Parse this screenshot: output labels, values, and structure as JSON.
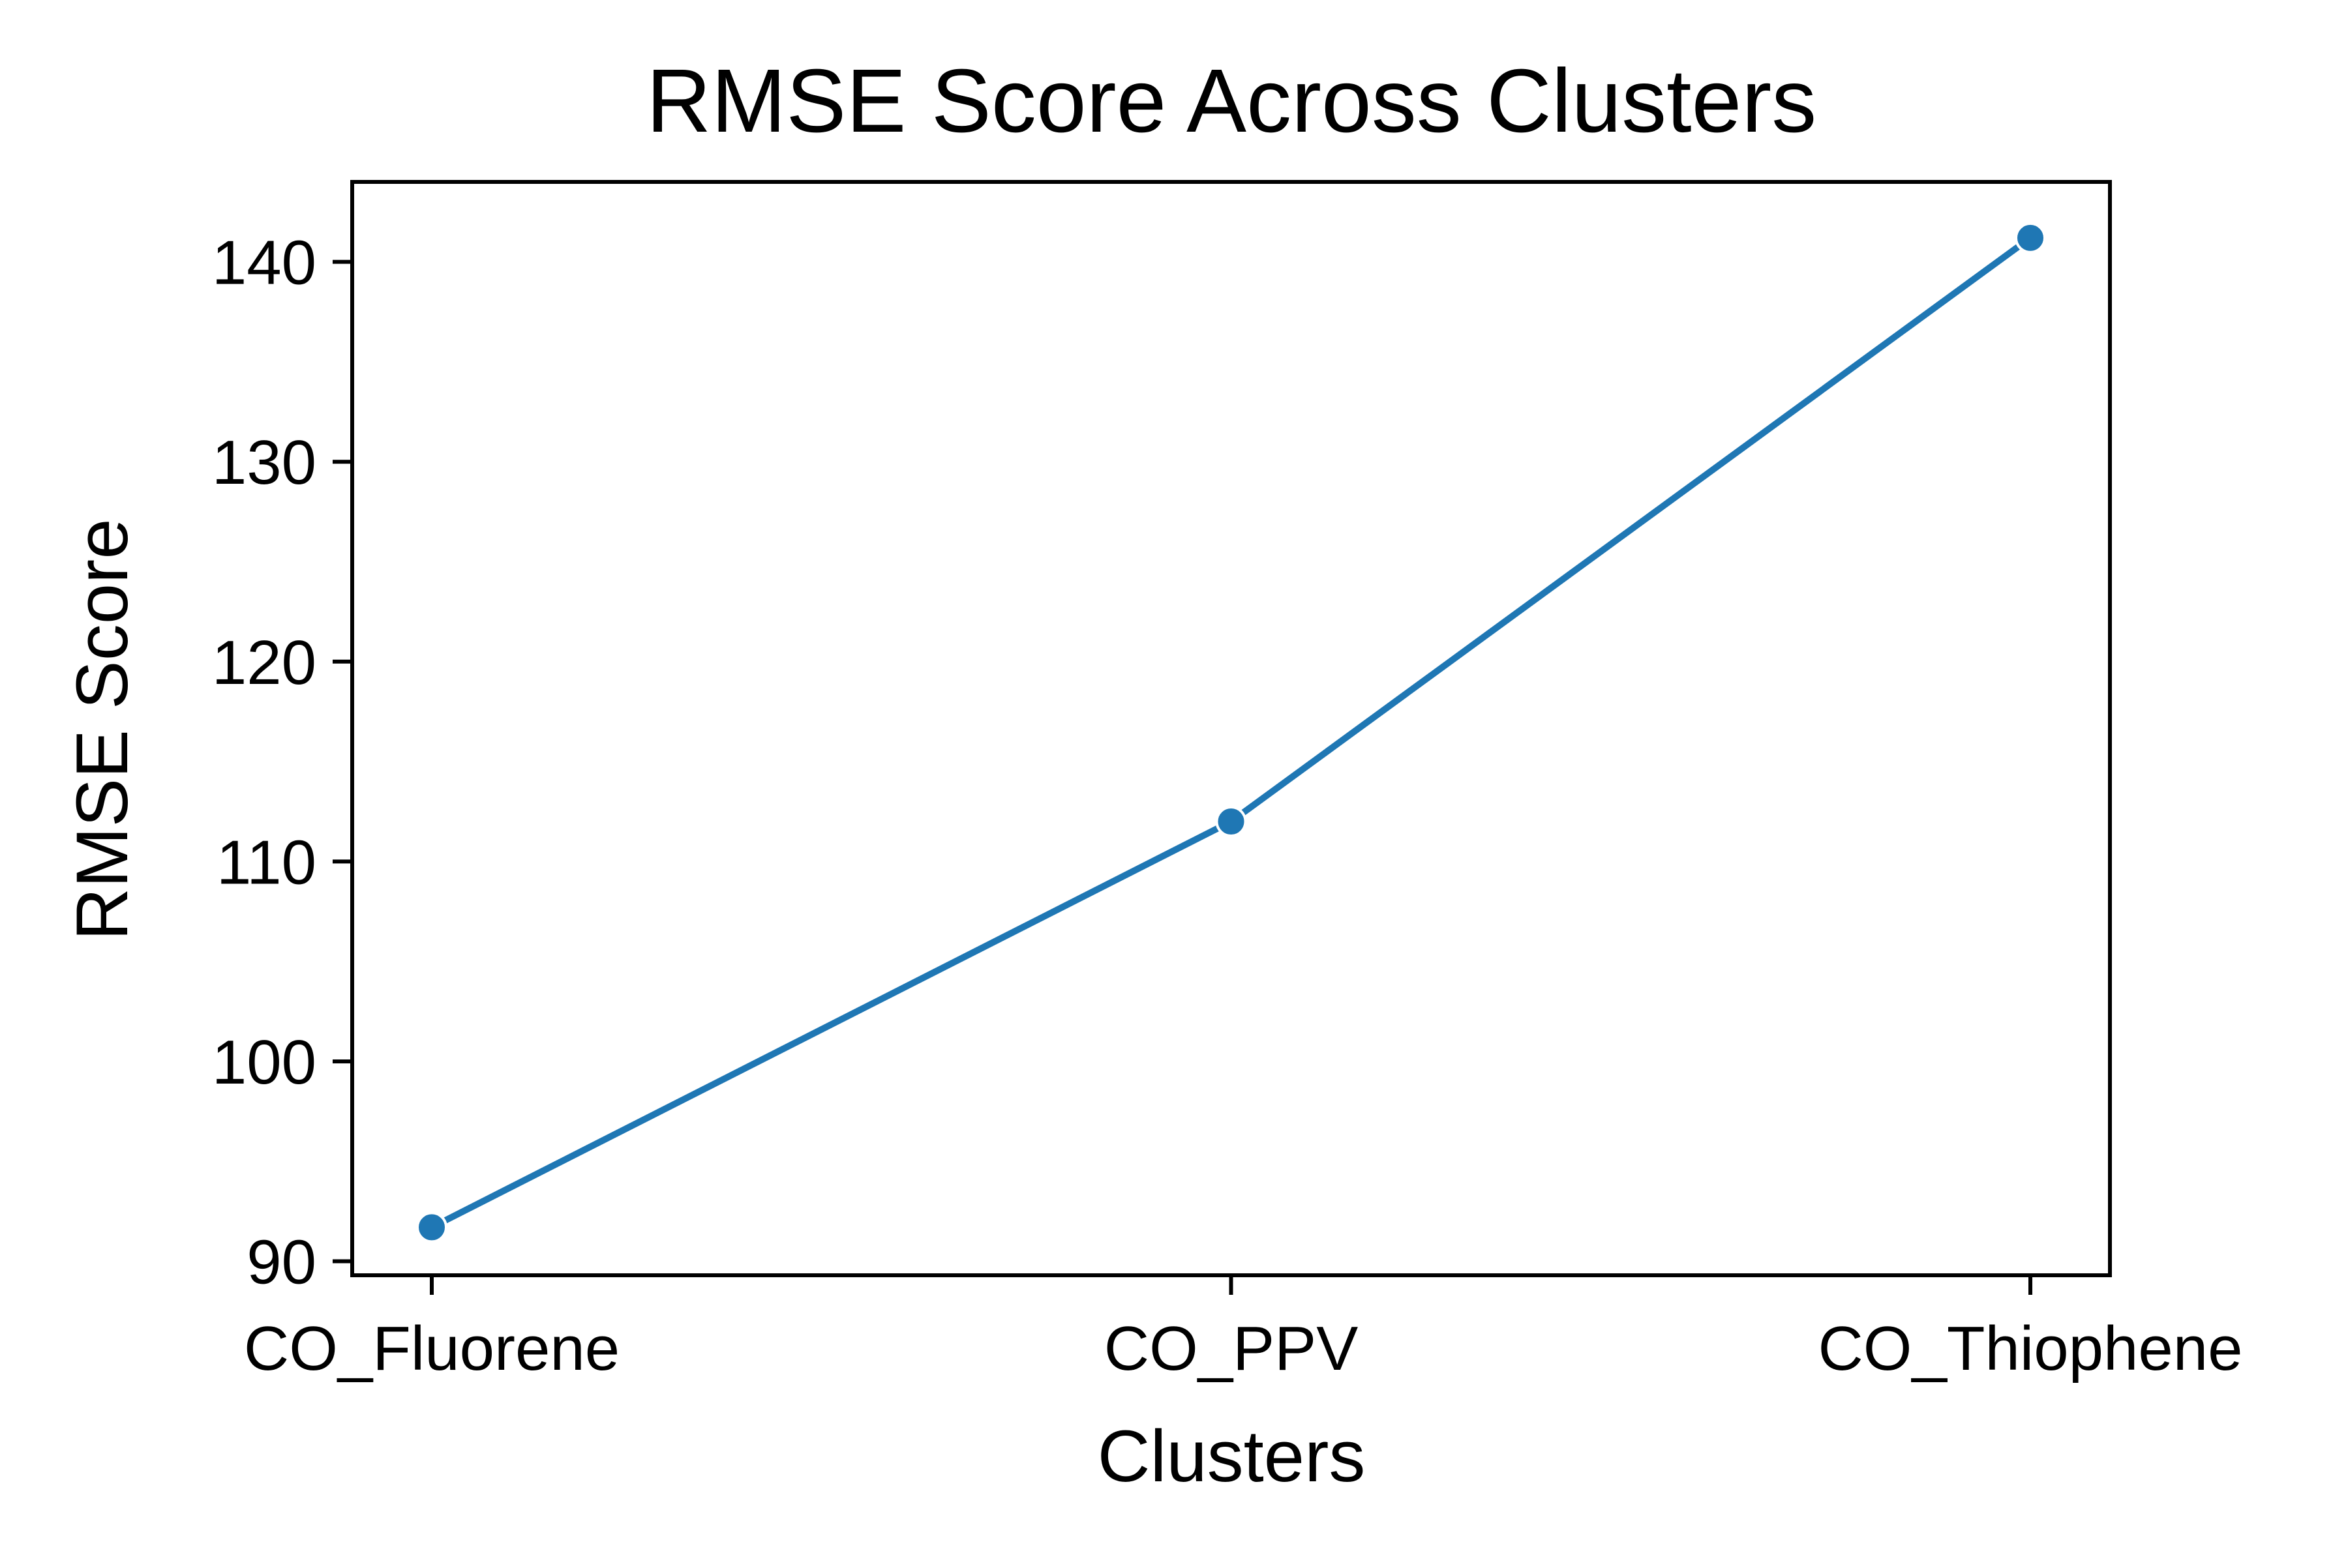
{
  "chart_data": {
    "type": "line",
    "title": "RMSE Score Across Clusters",
    "xlabel": "Clusters",
    "ylabel": "RMSE Score",
    "categories": [
      "CO_Fluorene",
      "CO_PPV",
      "CO_Thiophene"
    ],
    "series": [
      {
        "values": [
          91.7,
          112.0,
          141.2
        ],
        "color": "#1f77b4",
        "marker": "circle"
      }
    ],
    "ylim": [
      89.3,
      144.0
    ],
    "yticks": [
      90,
      100,
      110,
      120,
      130,
      140
    ],
    "grid": false,
    "legend": "none"
  }
}
